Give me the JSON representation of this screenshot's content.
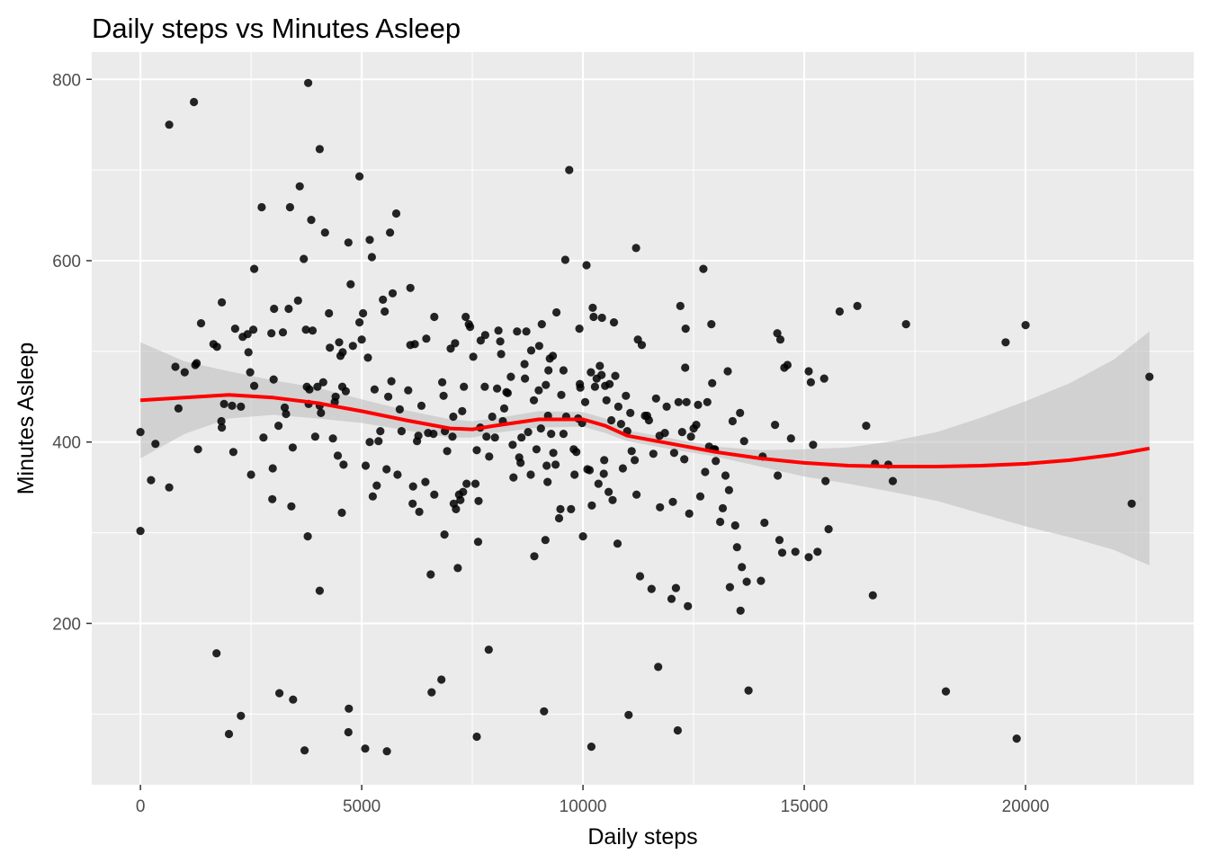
{
  "chart_data": {
    "type": "scatter",
    "title": "Daily steps vs Minutes Asleep",
    "xlabel": "Daily steps",
    "ylabel": "Minutes Asleep",
    "xlim": [
      -1100,
      23800
    ],
    "ylim": [
      22,
      830
    ],
    "xticks": [
      0,
      5000,
      10000,
      15000,
      20000
    ],
    "yticks": [
      200,
      400,
      600,
      800
    ],
    "xtick_labels": [
      "0",
      "5000",
      "10000",
      "15000",
      "20000"
    ],
    "ytick_labels": [
      "200",
      "400",
      "600",
      "800"
    ],
    "grid": true,
    "panel_background": "#ebebeb",
    "point_color": "#000000",
    "smooth": {
      "method": "loess",
      "color": "#ff0000",
      "band_color": "#bfbfbf",
      "x": [
        0,
        1000,
        2000,
        3000,
        4000,
        5000,
        6000,
        7000,
        7500,
        8000,
        9000,
        10000,
        10500,
        11000,
        12000,
        13000,
        14000,
        15000,
        16000,
        17000,
        18000,
        19000,
        20000,
        21000,
        22000,
        22800
      ],
      "y": [
        446,
        449,
        452,
        449,
        443,
        434,
        424,
        415,
        414,
        418,
        425,
        425,
        418,
        407,
        398,
        389,
        382,
        377,
        374,
        373,
        373,
        374,
        376,
        380,
        386,
        393
      ],
      "lower": [
        382,
        409,
        426,
        430,
        426,
        421,
        413,
        405,
        405,
        410,
        416,
        417,
        410,
        401,
        392,
        384,
        373,
        362,
        354,
        345,
        335,
        321,
        307,
        295,
        281,
        264
      ],
      "upper": [
        510,
        489,
        478,
        468,
        460,
        447,
        435,
        425,
        423,
        426,
        434,
        433,
        426,
        413,
        404,
        395,
        391,
        392,
        394,
        401,
        411,
        427,
        445,
        465,
        491,
        522
      ]
    },
    "points": [
      [
        0,
        302
      ],
      [
        0,
        411
      ],
      [
        240,
        358
      ],
      [
        340,
        398
      ],
      [
        650,
        750
      ],
      [
        650,
        350
      ],
      [
        790,
        483
      ],
      [
        860,
        437
      ],
      [
        1000,
        477
      ],
      [
        1210,
        775
      ],
      [
        1240,
        485
      ],
      [
        1270,
        487
      ],
      [
        1300,
        392
      ],
      [
        1370,
        531
      ],
      [
        1650,
        508
      ],
      [
        1730,
        505
      ],
      [
        1720,
        167
      ],
      [
        1830,
        423
      ],
      [
        1840,
        554
      ],
      [
        1840,
        416
      ],
      [
        1890,
        442
      ],
      [
        2000,
        78
      ],
      [
        2070,
        440
      ],
      [
        2100,
        389
      ],
      [
        2140,
        525
      ],
      [
        2270,
        439
      ],
      [
        2270,
        98
      ],
      [
        2310,
        516
      ],
      [
        2420,
        519
      ],
      [
        2440,
        499
      ],
      [
        2480,
        477
      ],
      [
        2500,
        364
      ],
      [
        2550,
        524
      ],
      [
        2570,
        591
      ],
      [
        2570,
        462
      ],
      [
        2740,
        659
      ],
      [
        2780,
        405
      ],
      [
        2960,
        520
      ],
      [
        2980,
        337
      ],
      [
        2990,
        371
      ],
      [
        3010,
        469
      ],
      [
        3020,
        547
      ],
      [
        3120,
        418
      ],
      [
        3140,
        123
      ],
      [
        3220,
        521
      ],
      [
        3260,
        438
      ],
      [
        3290,
        431
      ],
      [
        3350,
        547
      ],
      [
        3380,
        659
      ],
      [
        3410,
        329
      ],
      [
        3440,
        394
      ],
      [
        3450,
        116
      ],
      [
        3560,
        556
      ],
      [
        3600,
        682
      ],
      [
        3690,
        602
      ],
      [
        3710,
        60
      ],
      [
        3740,
        524
      ],
      [
        3760,
        461
      ],
      [
        3780,
        296
      ],
      [
        3790,
        796
      ],
      [
        3800,
        442
      ],
      [
        3820,
        458
      ],
      [
        3860,
        645
      ],
      [
        3890,
        523
      ],
      [
        3950,
        406
      ],
      [
        4000,
        461
      ],
      [
        4050,
        723
      ],
      [
        4050,
        440
      ],
      [
        4050,
        236
      ],
      [
        4080,
        432
      ],
      [
        4130,
        466
      ],
      [
        4170,
        631
      ],
      [
        4260,
        542
      ],
      [
        4280,
        504
      ],
      [
        4350,
        404
      ],
      [
        4390,
        444
      ],
      [
        4410,
        450
      ],
      [
        4460,
        385
      ],
      [
        4490,
        510
      ],
      [
        4520,
        495
      ],
      [
        4550,
        322
      ],
      [
        4560,
        461
      ],
      [
        4570,
        499
      ],
      [
        4590,
        375
      ],
      [
        4640,
        456
      ],
      [
        4700,
        620
      ],
      [
        4700,
        80
      ],
      [
        4710,
        106
      ],
      [
        4750,
        574
      ],
      [
        4800,
        506
      ],
      [
        4950,
        532
      ],
      [
        4950,
        693
      ],
      [
        5000,
        513
      ],
      [
        5030,
        542
      ],
      [
        5080,
        62
      ],
      [
        5090,
        374
      ],
      [
        5140,
        493
      ],
      [
        5180,
        623
      ],
      [
        5180,
        400
      ],
      [
        5230,
        604
      ],
      [
        5250,
        340
      ],
      [
        5290,
        458
      ],
      [
        5340,
        352
      ],
      [
        5380,
        401
      ],
      [
        5420,
        412
      ],
      [
        5480,
        557
      ],
      [
        5520,
        544
      ],
      [
        5560,
        370
      ],
      [
        5570,
        59
      ],
      [
        5600,
        450
      ],
      [
        5640,
        631
      ],
      [
        5670,
        467
      ],
      [
        5700,
        564
      ],
      [
        5780,
        652
      ],
      [
        5810,
        364
      ],
      [
        5860,
        436
      ],
      [
        5900,
        412
      ],
      [
        6050,
        457
      ],
      [
        6100,
        507
      ],
      [
        6100,
        570
      ],
      [
        6150,
        332
      ],
      [
        6160,
        351
      ],
      [
        6200,
        508
      ],
      [
        6250,
        401
      ],
      [
        6280,
        407
      ],
      [
        6300,
        323
      ],
      [
        6350,
        440
      ],
      [
        6440,
        356
      ],
      [
        6460,
        514
      ],
      [
        6500,
        410
      ],
      [
        6560,
        254
      ],
      [
        6580,
        124
      ],
      [
        6620,
        409
      ],
      [
        6640,
        342
      ],
      [
        6640,
        538
      ],
      [
        6800,
        138
      ],
      [
        6820,
        466
      ],
      [
        6850,
        451
      ],
      [
        6870,
        298
      ],
      [
        6880,
        412
      ],
      [
        6930,
        390
      ],
      [
        7010,
        503
      ],
      [
        7050,
        406
      ],
      [
        7070,
        428
      ],
      [
        7080,
        332
      ],
      [
        7110,
        509
      ],
      [
        7130,
        326
      ],
      [
        7170,
        261
      ],
      [
        7200,
        342
      ],
      [
        7230,
        336
      ],
      [
        7270,
        434
      ],
      [
        7290,
        345
      ],
      [
        7310,
        461
      ],
      [
        7350,
        538
      ],
      [
        7370,
        354
      ],
      [
        7420,
        530
      ],
      [
        7450,
        527
      ],
      [
        7520,
        494
      ],
      [
        7570,
        354
      ],
      [
        7600,
        391
      ],
      [
        7600,
        75
      ],
      [
        7630,
        290
      ],
      [
        7640,
        335
      ],
      [
        7680,
        416
      ],
      [
        7690,
        512
      ],
      [
        7780,
        461
      ],
      [
        7790,
        518
      ],
      [
        7820,
        406
      ],
      [
        7870,
        171
      ],
      [
        7880,
        384
      ],
      [
        7950,
        428
      ],
      [
        8010,
        405
      ],
      [
        8060,
        459
      ],
      [
        8090,
        523
      ],
      [
        8130,
        511
      ],
      [
        8150,
        497
      ],
      [
        8190,
        423
      ],
      [
        8220,
        437
      ],
      [
        8270,
        455
      ],
      [
        8300,
        454
      ],
      [
        8370,
        472
      ],
      [
        8410,
        397
      ],
      [
        8430,
        361
      ],
      [
        8510,
        522
      ],
      [
        8560,
        383
      ],
      [
        8590,
        377
      ],
      [
        8610,
        405
      ],
      [
        8680,
        486
      ],
      [
        8690,
        470
      ],
      [
        8720,
        522
      ],
      [
        8760,
        411
      ],
      [
        8820,
        364
      ],
      [
        8830,
        501
      ],
      [
        8890,
        446
      ],
      [
        8900,
        274
      ],
      [
        8950,
        392
      ],
      [
        9000,
        457
      ],
      [
        9010,
        506
      ],
      [
        9050,
        415
      ],
      [
        9070,
        530
      ],
      [
        9120,
        103
      ],
      [
        9150,
        292
      ],
      [
        9160,
        463
      ],
      [
        9180,
        374
      ],
      [
        9200,
        356
      ],
      [
        9210,
        429
      ],
      [
        9220,
        479
      ],
      [
        9250,
        492
      ],
      [
        9280,
        409
      ],
      [
        9320,
        495
      ],
      [
        9330,
        388
      ],
      [
        9380,
        375
      ],
      [
        9400,
        543
      ],
      [
        9460,
        316
      ],
      [
        9490,
        326
      ],
      [
        9510,
        452
      ],
      [
        9560,
        479
      ],
      [
        9560,
        409
      ],
      [
        9600,
        601
      ],
      [
        9620,
        428
      ],
      [
        9690,
        700
      ],
      [
        9730,
        326
      ],
      [
        9790,
        392
      ],
      [
        9810,
        364
      ],
      [
        9850,
        389
      ],
      [
        9890,
        426
      ],
      [
        9920,
        525
      ],
      [
        9930,
        464
      ],
      [
        9940,
        460
      ],
      [
        9980,
        421
      ],
      [
        10000,
        296
      ],
      [
        10050,
        444
      ],
      [
        10080,
        595
      ],
      [
        10100,
        370
      ],
      [
        10150,
        369
      ],
      [
        10180,
        477
      ],
      [
        10190,
        64
      ],
      [
        10200,
        330
      ],
      [
        10220,
        548
      ],
      [
        10240,
        538
      ],
      [
        10270,
        461
      ],
      [
        10310,
        470
      ],
      [
        10350,
        354
      ],
      [
        10380,
        484
      ],
      [
        10420,
        474
      ],
      [
        10430,
        537
      ],
      [
        10470,
        365
      ],
      [
        10480,
        380
      ],
      [
        10500,
        462
      ],
      [
        10530,
        446
      ],
      [
        10580,
        345
      ],
      [
        10600,
        464
      ],
      [
        10640,
        424
      ],
      [
        10670,
        336
      ],
      [
        10700,
        532
      ],
      [
        10730,
        473
      ],
      [
        10780,
        288
      ],
      [
        10800,
        439
      ],
      [
        10860,
        420
      ],
      [
        10900,
        371
      ],
      [
        10970,
        451
      ],
      [
        11000,
        412
      ],
      [
        11030,
        99
      ],
      [
        11070,
        432
      ],
      [
        11100,
        390
      ],
      [
        11170,
        380
      ],
      [
        11200,
        614
      ],
      [
        11210,
        342
      ],
      [
        11240,
        513
      ],
      [
        11290,
        252
      ],
      [
        11330,
        507
      ],
      [
        11400,
        429
      ],
      [
        11450,
        429
      ],
      [
        11490,
        424
      ],
      [
        11550,
        238
      ],
      [
        11590,
        387
      ],
      [
        11650,
        448
      ],
      [
        11700,
        152
      ],
      [
        11730,
        407
      ],
      [
        11740,
        328
      ],
      [
        11850,
        410
      ],
      [
        11890,
        439
      ],
      [
        12000,
        227
      ],
      [
        12030,
        334
      ],
      [
        12060,
        388
      ],
      [
        12100,
        239
      ],
      [
        12140,
        82
      ],
      [
        12160,
        444
      ],
      [
        12200,
        550
      ],
      [
        12240,
        411
      ],
      [
        12290,
        381
      ],
      [
        12310,
        482
      ],
      [
        12320,
        525
      ],
      [
        12340,
        444
      ],
      [
        12370,
        219
      ],
      [
        12400,
        321
      ],
      [
        12440,
        406
      ],
      [
        12500,
        415
      ],
      [
        12560,
        419
      ],
      [
        12600,
        441
      ],
      [
        12650,
        340
      ],
      [
        12720,
        591
      ],
      [
        12760,
        367
      ],
      [
        12810,
        444
      ],
      [
        12850,
        395
      ],
      [
        12900,
        530
      ],
      [
        12920,
        465
      ],
      [
        12960,
        392
      ],
      [
        12980,
        392
      ],
      [
        13000,
        379
      ],
      [
        13100,
        312
      ],
      [
        13160,
        327
      ],
      [
        13220,
        363
      ],
      [
        13270,
        478
      ],
      [
        13300,
        347
      ],
      [
        13320,
        240
      ],
      [
        13380,
        423
      ],
      [
        13440,
        308
      ],
      [
        13480,
        284
      ],
      [
        13550,
        432
      ],
      [
        13560,
        214
      ],
      [
        13590,
        262
      ],
      [
        13640,
        401
      ],
      [
        13700,
        246
      ],
      [
        13740,
        126
      ],
      [
        14020,
        247
      ],
      [
        14060,
        384
      ],
      [
        14100,
        311
      ],
      [
        14340,
        419
      ],
      [
        14390,
        520
      ],
      [
        14400,
        363
      ],
      [
        14440,
        292
      ],
      [
        14460,
        513
      ],
      [
        14500,
        278
      ],
      [
        14550,
        482
      ],
      [
        14620,
        485
      ],
      [
        14700,
        404
      ],
      [
        14800,
        279
      ],
      [
        15100,
        273
      ],
      [
        15100,
        478
      ],
      [
        15150,
        466
      ],
      [
        15200,
        397
      ],
      [
        15300,
        279
      ],
      [
        15450,
        470
      ],
      [
        15480,
        357
      ],
      [
        15550,
        304
      ],
      [
        15800,
        544
      ],
      [
        16200,
        550
      ],
      [
        16400,
        418
      ],
      [
        16550,
        231
      ],
      [
        16600,
        376
      ],
      [
        16900,
        375
      ],
      [
        17000,
        357
      ],
      [
        17300,
        530
      ],
      [
        18200,
        125
      ],
      [
        19550,
        510
      ],
      [
        19800,
        73
      ],
      [
        20000,
        529
      ],
      [
        22400,
        332
      ],
      [
        22800,
        472
      ]
    ]
  }
}
